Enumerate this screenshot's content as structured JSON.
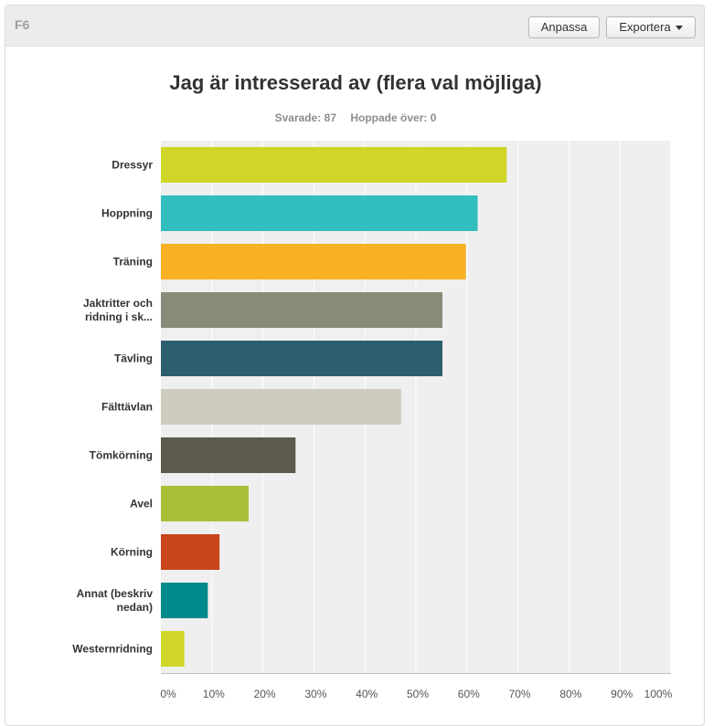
{
  "header": {
    "question_id": "F6",
    "customize_label": "Anpassa",
    "export_label": "Exportera"
  },
  "stats": {
    "answered": "Svarade: 87",
    "skipped": "Hoppade över: 0"
  },
  "chart_data": {
    "type": "bar",
    "orientation": "horizontal",
    "title": "Jag är intresserad av (flera val möjliga)",
    "xlabel": "",
    "ylabel": "",
    "xlim": [
      0,
      100
    ],
    "grid": true,
    "categories": [
      [
        "Dressyr"
      ],
      [
        "Hoppning"
      ],
      [
        "Träning"
      ],
      [
        "Jaktritter och",
        "ridning i sk..."
      ],
      [
        "Tävling"
      ],
      [
        "Fälttävlan"
      ],
      [
        "Tömkörning"
      ],
      [
        "Avel"
      ],
      [
        "Körning"
      ],
      [
        "Annat (beskriv",
        "nedan)"
      ],
      [
        "Westernridning"
      ]
    ],
    "values": [
      67.8,
      62.1,
      59.8,
      55.2,
      55.2,
      47.1,
      26.4,
      17.2,
      11.5,
      9.2,
      4.6
    ],
    "colors": [
      "#cfd628",
      "#32bebf",
      "#f7b122",
      "#8a8a79",
      "#2c5f6e",
      "#cfccbe",
      "#5c5a4a",
      "#a9bf38",
      "#c9461d",
      "#00898a",
      "#cfd628"
    ],
    "tick_labels": [
      "0%",
      "10%",
      "20%",
      "30%",
      "40%",
      "50%",
      "60%",
      "70%",
      "80%",
      "90%",
      "100%"
    ]
  }
}
